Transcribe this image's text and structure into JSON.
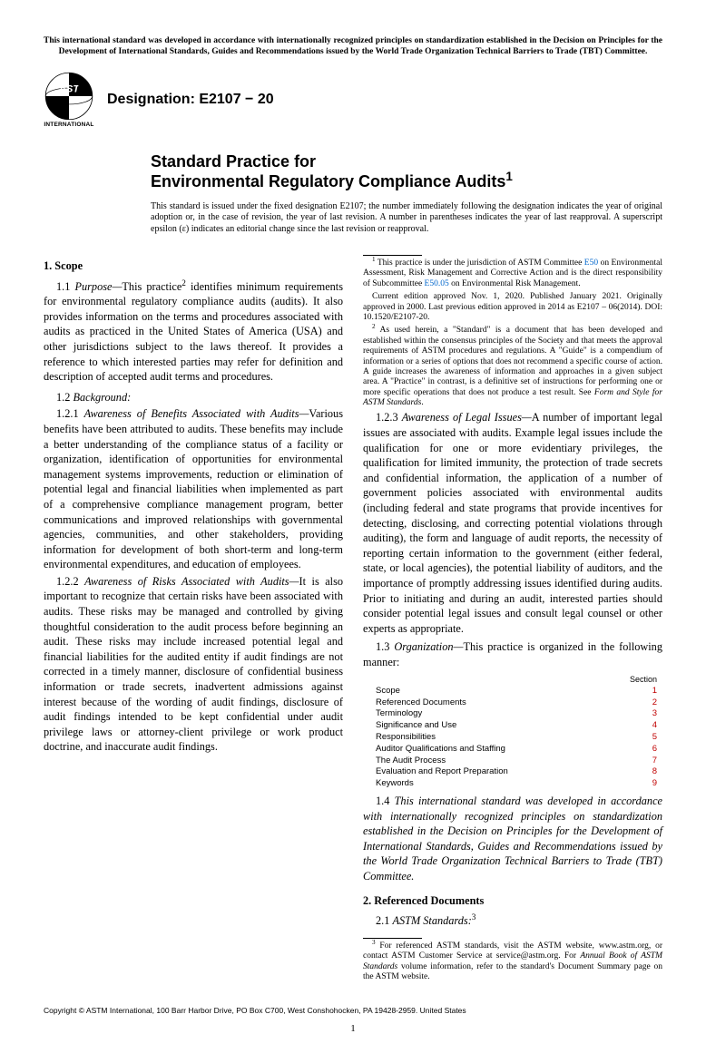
{
  "top_notice": "This international standard was developed in accordance with internationally recognized principles on standardization established in the Decision on Principles for the Development of International Standards, Guides and Recommendations issued by the World Trade Organization Technical Barriers to Trade (TBT) Committee.",
  "logo_text": "INTERNATIONAL",
  "designation_label": "Designation: E2107 − 20",
  "title_line1": "Standard Practice for",
  "title_line2": "Environmental Regulatory Compliance Audits",
  "title_sup": "1",
  "issued_note": "This standard is issued under the fixed designation E2107; the number immediately following the designation indicates the year of original adoption or, in the case of revision, the year of last revision. A number in parentheses indicates the year of last reapproval. A superscript epsilon (ε) indicates an editorial change since the last revision or reapproval.",
  "section1_head": "1. Scope",
  "p_1_1_num": "1.1 ",
  "p_1_1_runin": "Purpose—",
  "p_1_1_body_a": "This practice",
  "p_1_1_sup": "2",
  "p_1_1_body_b": " identifies minimum requirements for environmental regulatory compliance audits (audits). It also provides information on the terms and procedures associated with audits as practiced in the United States of America (USA) and other jurisdictions subject to the laws thereof. It provides a reference to which interested parties may refer for definition and description of accepted audit terms and procedures.",
  "p_1_2_num": "1.2 ",
  "p_1_2_runin": "Background:",
  "p_1_2_1_num": "1.2.1 ",
  "p_1_2_1_runin": "Awareness of Benefits Associated with Audits—",
  "p_1_2_1_body": "Various benefits have been attributed to audits. These benefits may include a better understanding of the compliance status of a facility or organization, identification of opportunities for environmental management systems improvements, reduction or elimination of potential legal and financial liabilities when implemented as part of a comprehensive compliance management program, better communications and improved relationships with governmental agencies, communities, and other stakeholders, providing information for development of both short-term and long-term environmental expenditures, and education of employees.",
  "p_1_2_2_num": "1.2.2 ",
  "p_1_2_2_runin": "Awareness of Risks Associated with Audits—",
  "p_1_2_2_body": "It is also important to recognize that certain risks have been associated with audits. These risks may be managed and controlled by giving thoughtful consideration to the audit process before beginning an audit. These risks may include increased potential legal and financial liabilities for the audited entity if audit findings are not corrected in a timely manner, disclosure of confidential business information or trade secrets, inadvertent admissions against interest because of the wording of audit findings, disclosure of audit findings intended to be kept confidential under audit privilege laws or attorney-client privilege or work product doctrine, and inaccurate audit findings.",
  "p_1_2_3_num": "1.2.3 ",
  "p_1_2_3_runin": "Awareness of Legal Issues—",
  "p_1_2_3_body": "A number of important legal issues are associated with audits. Example legal issues include the qualification for one or more evidentiary privileges, the qualification for limited immunity, the protection of trade secrets and confidential information, the application of a number of government policies associated with environmental audits (including federal and state programs that provide incentives for detecting, disclosing, and correcting potential violations through auditing), the form and language of audit reports, the necessity of reporting certain information to the government (either federal, state, or local agencies), the potential liability of auditors, and the importance of promptly addressing issues identified during audits. Prior to initiating and during an audit, interested parties should consider potential legal issues and consult legal counsel or other experts as appropriate.",
  "p_1_3_num": "1.3 ",
  "p_1_3_runin": "Organization—",
  "p_1_3_body": "This practice is organized in the following manner:",
  "toc_head": "Section",
  "toc": [
    {
      "label": "Scope",
      "num": "1"
    },
    {
      "label": "Referenced Documents",
      "num": "2"
    },
    {
      "label": "Terminology",
      "num": "3"
    },
    {
      "label": "Significance and Use",
      "num": "4"
    },
    {
      "label": "Responsibilities",
      "num": "5"
    },
    {
      "label": "Auditor Qualifications and Staffing",
      "num": "6"
    },
    {
      "label": "The Audit Process",
      "num": "7"
    },
    {
      "label": "Evaluation and Report Preparation",
      "num": "8"
    },
    {
      "label": "Keywords",
      "num": "9"
    }
  ],
  "p_1_4_num": "1.4 ",
  "p_1_4_body": "This international standard was developed in accordance with internationally recognized principles on standardization established in the Decision on Principles for the Development of International Standards, Guides and Recommendations issued by the World Trade Organization Technical Barriers to Trade (TBT) Committee.",
  "section2_head": "2. Referenced Documents",
  "p_2_1_num": "2.1 ",
  "p_2_1_runin": "ASTM Standards:",
  "p_2_1_sup": "3",
  "fn1_sup": "1",
  "fn1_a": " This practice is under the jurisdiction of ASTM Committee ",
  "fn1_link1": "E50",
  "fn1_b": " on Environmental Assessment, Risk Management and Corrective Action and is the direct responsibility of Subcommittee ",
  "fn1_link2": "E50.05",
  "fn1_c": " on Environmental Risk Management.",
  "fn1_para2": "Current edition approved Nov. 1, 2020. Published January 2021. Originally approved in 2000. Last previous edition approved in 2014 as E2107 – 06(2014). DOI: 10.1520/E2107-20.",
  "fn2_sup": "2",
  "fn2_body": " As used herein, a \"Standard\" is a document that has been developed and established within the consensus principles of the Society and that meets the approval requirements of ASTM procedures and regulations. A \"Guide\" is a compendium of information or a series of options that does not recommend a specific course of action. A guide increases the awareness of information and approaches in a given subject area. A \"Practice\" in contrast, is a definitive set of instructions for performing one or more specific operations that does not produce a test result. See ",
  "fn2_ital": "Form and Style for ASTM Standards",
  "fn3_sup": "3",
  "fn3_a": " For referenced ASTM standards, visit the ASTM website, www.astm.org, or contact ASTM Customer Service at service@astm.org. For ",
  "fn3_ital": "Annual Book of ASTM Standards",
  "fn3_b": " volume information, refer to the standard's Document Summary page on the ASTM website.",
  "copyright": "Copyright © ASTM International, 100 Barr Harbor Drive, PO Box C700, West Conshohocken, PA 19428-2959. United States",
  "page": "1",
  "colors": {
    "link": "#0066cc",
    "section_num": "#c00000"
  }
}
